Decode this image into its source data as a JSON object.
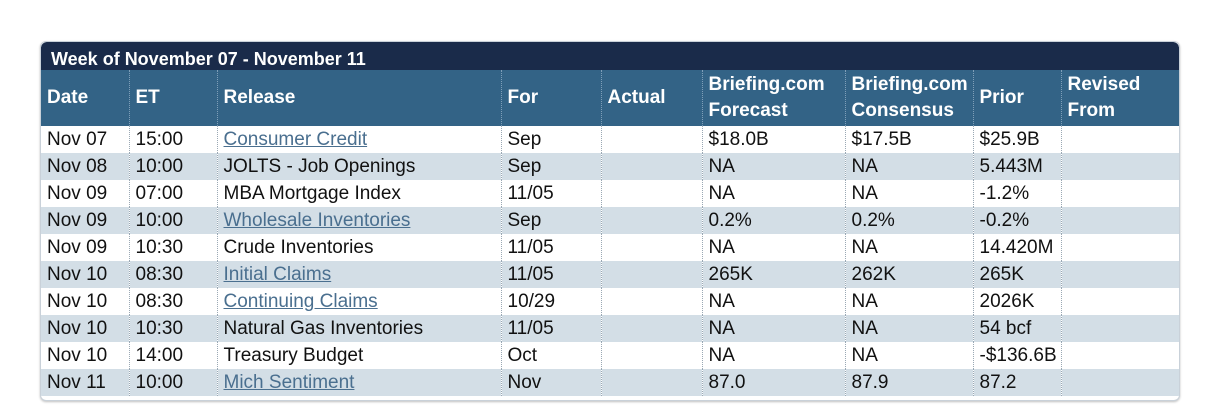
{
  "calendar": {
    "title": "Week of November 07 - November 11",
    "headers": {
      "date": "Date",
      "et": "ET",
      "release": "Release",
      "for": "For",
      "actual": "Actual",
      "forecast_1": "Briefing.com",
      "forecast_2": "Forecast",
      "consensus_1": "Briefing.com",
      "consensus_2": "Consensus",
      "prior": "Prior",
      "revised_1": "Revised",
      "revised_2": "From"
    },
    "rows": [
      {
        "date": "Nov 07",
        "et": "15:00",
        "release": "Consumer Credit",
        "for": "Sep",
        "actual": "",
        "forecast": "$18.0B",
        "consensus": "$17.5B",
        "prior": "$25.9B",
        "revised": ""
      },
      {
        "date": "Nov 08",
        "et": "10:00",
        "release": "JOLTS - Job Openings",
        "for": "Sep",
        "actual": "",
        "forecast": "NA",
        "consensus": "NA",
        "prior": "5.443M",
        "revised": ""
      },
      {
        "date": "Nov 09",
        "et": "07:00",
        "release": "MBA Mortgage Index",
        "for": "11/05",
        "actual": "",
        "forecast": "NA",
        "consensus": "NA",
        "prior": "-1.2%",
        "revised": ""
      },
      {
        "date": "Nov 09",
        "et": "10:00",
        "release": "Wholesale Inventories",
        "for": "Sep",
        "actual": "",
        "forecast": "0.2%",
        "consensus": "0.2%",
        "prior": "-0.2%",
        "revised": ""
      },
      {
        "date": "Nov 09",
        "et": "10:30",
        "release": "Crude Inventories",
        "for": "11/05",
        "actual": "",
        "forecast": "NA",
        "consensus": "NA",
        "prior": "14.420M",
        "revised": ""
      },
      {
        "date": "Nov 10",
        "et": "08:30",
        "release": "Initial Claims",
        "for": "11/05",
        "actual": "",
        "forecast": "265K",
        "consensus": "262K",
        "prior": "265K",
        "revised": ""
      },
      {
        "date": "Nov 10",
        "et": "08:30",
        "release": "Continuing Claims",
        "for": "10/29",
        "actual": "",
        "forecast": "NA",
        "consensus": "NA",
        "prior": "2026K",
        "revised": ""
      },
      {
        "date": "Nov 10",
        "et": "10:30",
        "release": "Natural Gas Inventories",
        "for": "11/05",
        "actual": "",
        "forecast": "NA",
        "consensus": "NA",
        "prior": "54 bcf",
        "revised": ""
      },
      {
        "date": "Nov 10",
        "et": "14:00",
        "release": "Treasury Budget",
        "for": "Oct",
        "actual": "",
        "forecast": "NA",
        "consensus": "NA",
        "prior": "-$136.6B",
        "revised": ""
      },
      {
        "date": "Nov 11",
        "et": "10:00",
        "release": "Mich Sentiment",
        "for": "Nov",
        "actual": "",
        "forecast": "87.0",
        "consensus": "87.9",
        "prior": "87.2",
        "revised": ""
      }
    ]
  },
  "colors": {
    "title_bg": "#1a2b4a",
    "header_bg": "#336386",
    "row_alt": "#d3dee6",
    "link": "#4a6f8f"
  }
}
